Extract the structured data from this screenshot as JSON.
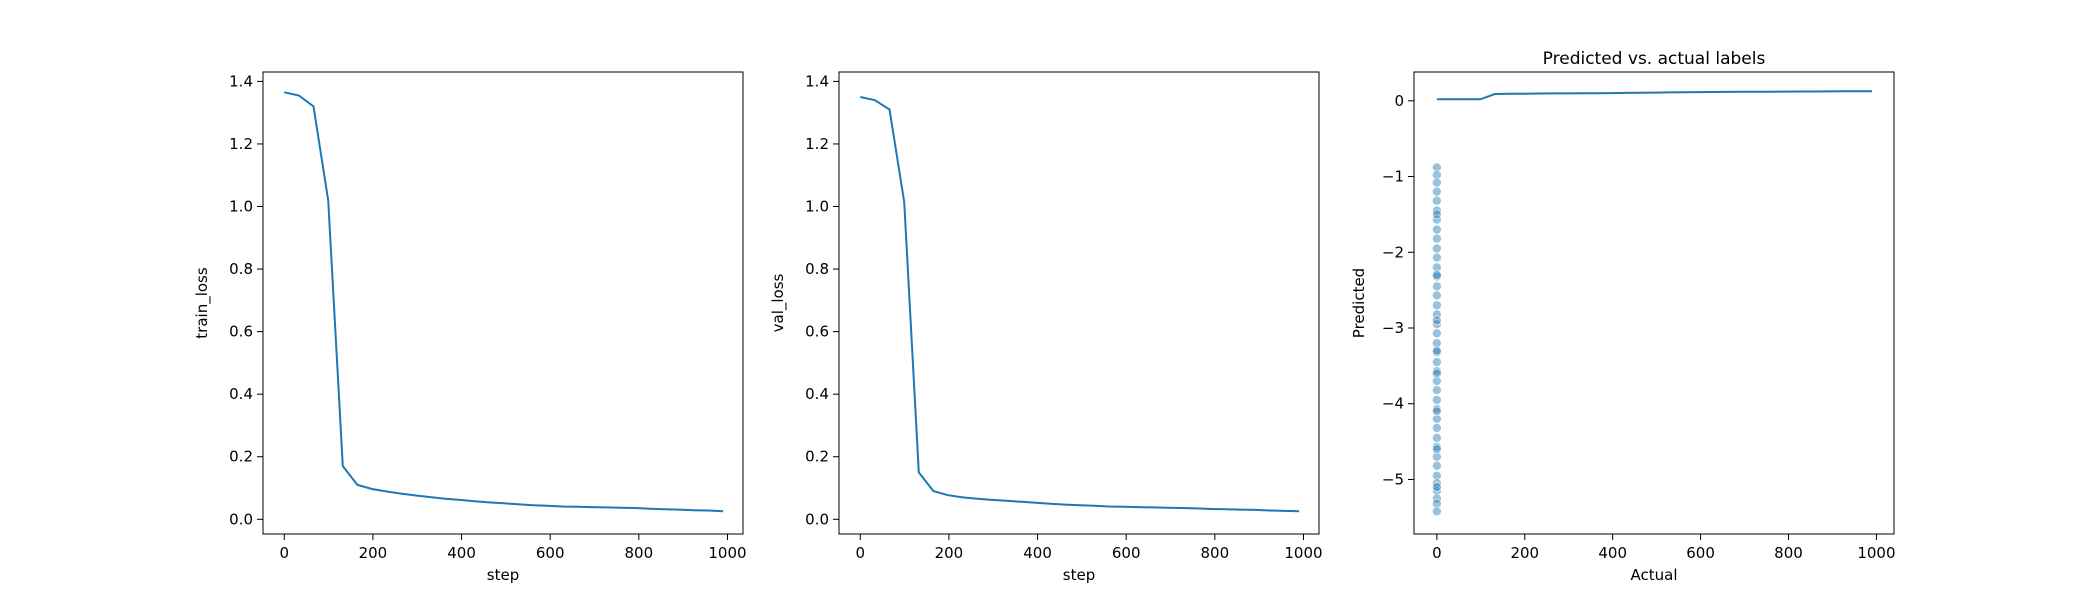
{
  "colors": {
    "line": "#1f77b4",
    "points": "#1f77b4",
    "axes": "#000000",
    "background": "#ffffff"
  },
  "chart_data": [
    {
      "type": "line",
      "title": "",
      "xlabel": "step",
      "ylabel": "train_loss",
      "xlim": [
        -48,
        1035
      ],
      "ylim": [
        -0.047,
        1.43
      ],
      "xticks": [
        "0",
        "200",
        "400",
        "600",
        "800",
        "1000"
      ],
      "xtick_values": [
        0,
        200,
        400,
        600,
        800,
        1000
      ],
      "yticks": [
        "0.0",
        "0.2",
        "0.4",
        "0.6",
        "0.8",
        "1.0",
        "1.2",
        "1.4"
      ],
      "ytick_values": [
        0.0,
        0.2,
        0.4,
        0.6,
        0.8,
        1.0,
        1.2,
        1.4
      ],
      "grid": false,
      "series": [
        {
          "x": [
            0,
            33,
            66,
            99,
            132,
            165,
            198,
            231,
            264,
            297,
            330,
            363,
            396,
            429,
            462,
            495,
            528,
            561,
            594,
            627,
            660,
            693,
            726,
            759,
            792,
            825,
            858,
            891,
            924,
            957,
            990
          ],
          "y": [
            1.365,
            1.355,
            1.32,
            1.02,
            0.17,
            0.11,
            0.097,
            0.089,
            0.082,
            0.076,
            0.071,
            0.066,
            0.062,
            0.058,
            0.054,
            0.051,
            0.048,
            0.045,
            0.043,
            0.041,
            0.04,
            0.039,
            0.038,
            0.037,
            0.036,
            0.034,
            0.032,
            0.031,
            0.029,
            0.028,
            0.026
          ]
        }
      ]
    },
    {
      "type": "line",
      "title": "",
      "xlabel": "step",
      "ylabel": "val_loss",
      "xlim": [
        -48,
        1035
      ],
      "ylim": [
        -0.047,
        1.43
      ],
      "xticks": [
        "0",
        "200",
        "400",
        "600",
        "800",
        "1000"
      ],
      "xtick_values": [
        0,
        200,
        400,
        600,
        800,
        1000
      ],
      "yticks": [
        "0.0",
        "0.2",
        "0.4",
        "0.6",
        "0.8",
        "1.0",
        "1.2",
        "1.4"
      ],
      "ytick_values": [
        0.0,
        0.2,
        0.4,
        0.6,
        0.8,
        1.0,
        1.2,
        1.4
      ],
      "grid": false,
      "series": [
        {
          "x": [
            0,
            33,
            66,
            99,
            132,
            165,
            198,
            231,
            264,
            297,
            330,
            363,
            396,
            429,
            462,
            495,
            528,
            561,
            594,
            627,
            660,
            693,
            726,
            759,
            792,
            825,
            858,
            891,
            924,
            957,
            990
          ],
          "y": [
            1.35,
            1.34,
            1.31,
            1.015,
            0.15,
            0.09,
            0.077,
            0.07,
            0.066,
            0.062,
            0.059,
            0.056,
            0.053,
            0.05,
            0.047,
            0.045,
            0.043,
            0.041,
            0.04,
            0.039,
            0.038,
            0.037,
            0.036,
            0.035,
            0.033,
            0.032,
            0.031,
            0.03,
            0.028,
            0.027,
            0.026
          ]
        }
      ]
    },
    {
      "type": "scatter",
      "title": "Predicted vs. actual labels",
      "xlabel": "Actual",
      "ylabel": "Predicted",
      "xlim": [
        -52,
        1040
      ],
      "ylim": [
        -5.72,
        0.38
      ],
      "xticks": [
        "0",
        "200",
        "400",
        "600",
        "800",
        "1000"
      ],
      "xtick_values": [
        0,
        200,
        400,
        600,
        800,
        1000
      ],
      "yticks": [
        "−5",
        "−4",
        "−3",
        "−2",
        "−1",
        "0"
      ],
      "ytick_values": [
        -5,
        -4,
        -3,
        -2,
        -1,
        0
      ],
      "grid": false,
      "line_series": {
        "x": [
          0,
          33,
          66,
          99,
          132,
          165,
          198,
          231,
          264,
          297,
          330,
          363,
          396,
          429,
          462,
          495,
          528,
          561,
          594,
          627,
          660,
          693,
          726,
          759,
          792,
          825,
          858,
          891,
          924,
          957,
          990
        ],
        "y": [
          0.02,
          0.02,
          0.02,
          0.02,
          0.09,
          0.092,
          0.094,
          0.096,
          0.097,
          0.098,
          0.099,
          0.1,
          0.102,
          0.104,
          0.106,
          0.108,
          0.11,
          0.112,
          0.114,
          0.116,
          0.117,
          0.118,
          0.119,
          0.12,
          0.121,
          0.122,
          0.123,
          0.124,
          0.125,
          0.126,
          0.127
        ]
      },
      "scatter_series": {
        "x": [
          0,
          0,
          0,
          0,
          0,
          0,
          0,
          0,
          0,
          0,
          0,
          0,
          0,
          0,
          0,
          0,
          0,
          0,
          0,
          0,
          0,
          0,
          0,
          0,
          0,
          0,
          0,
          0,
          0,
          0,
          0,
          0,
          0,
          0,
          0,
          0,
          0,
          0,
          0,
          0,
          0,
          0,
          0,
          0,
          0,
          0,
          0
        ],
        "y": [
          -0.88,
          -0.98,
          -1.08,
          -1.2,
          -1.32,
          -1.45,
          -1.57,
          -1.7,
          -1.82,
          -1.95,
          -2.07,
          -2.2,
          -2.32,
          -2.45,
          -2.57,
          -2.7,
          -2.82,
          -2.95,
          -3.07,
          -3.2,
          -3.32,
          -3.45,
          -3.57,
          -3.7,
          -3.82,
          -3.95,
          -4.07,
          -4.2,
          -4.32,
          -4.45,
          -4.57,
          -4.7,
          -4.82,
          -4.95,
          -5.05,
          -5.15,
          -5.25,
          -5.32,
          -5.42,
          -2.3,
          -2.9,
          -3.6,
          -4.1,
          -4.6,
          -5.1,
          -1.5,
          -3.3
        ]
      }
    }
  ]
}
